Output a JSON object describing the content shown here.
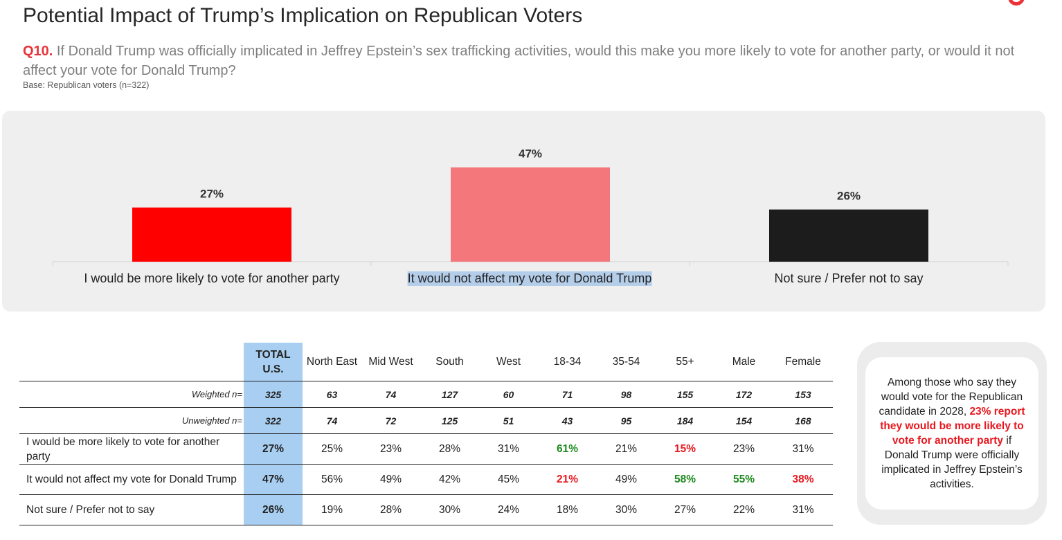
{
  "title": "Potential Impact of Trump’s Implication on Republican Voters",
  "question": {
    "number": "Q10.",
    "text": " If Donald Trump was officially implicated in Jeffrey Epstein’s sex trafficking activities, would this make you more likely to vote for another party, or would it not affect your vote for Donald Trump?",
    "base": "Base: Republican voters (n=322)"
  },
  "chart_data": {
    "type": "bar",
    "categories": [
      "I would be more likely to vote for another party",
      "It would not affect my vote for Donald Trump",
      "Not sure / Prefer not to say"
    ],
    "values": [
      27,
      47,
      26
    ],
    "value_labels": [
      "27%",
      "47%",
      "26%"
    ],
    "colors": [
      "#ff0000",
      "#f4777b",
      "#1c1c1c"
    ],
    "ylim": [
      0,
      50
    ],
    "grid": false,
    "legend": "none"
  },
  "table": {
    "headers": [
      "TOTAL U.S.",
      "North East",
      "Mid West",
      "South",
      "West",
      "18-34",
      "35-54",
      "55+",
      "Male",
      "Female"
    ],
    "rows": [
      {
        "label": "Weighted n=",
        "values": [
          "325",
          "63",
          "74",
          "127",
          "60",
          "71",
          "98",
          "155",
          "172",
          "153"
        ]
      },
      {
        "label": "Unweighted n=",
        "values": [
          "322",
          "74",
          "72",
          "125",
          "51",
          "43",
          "95",
          "184",
          "154",
          "168"
        ]
      },
      {
        "label": "I would be more likely to vote for another party",
        "values": [
          "27%",
          "25%",
          "23%",
          "28%",
          "31%",
          "61%",
          "21%",
          "15%",
          "23%",
          "31%"
        ]
      },
      {
        "label": "It would not affect my vote for Donald Trump",
        "values": [
          "47%",
          "56%",
          "49%",
          "42%",
          "45%",
          "21%",
          "49%",
          "58%",
          "55%",
          "38%"
        ]
      },
      {
        "label": "Not sure / Prefer not to say",
        "values": [
          "26%",
          "19%",
          "28%",
          "30%",
          "24%",
          "18%",
          "30%",
          "27%",
          "22%",
          "31%"
        ]
      }
    ],
    "highlight_colors": {
      "higher": "#1e8a1e",
      "lower": "#e8171e",
      "total_column": "#a8cff1"
    }
  },
  "callout": {
    "before": "Among those who say they would vote for the Republican candidate in 2028, ",
    "emphasis": "23% report they would be more likely to vote for another party",
    "after": " if Donald Trump were officially implicated in Jeffrey Epstein’s activities."
  }
}
